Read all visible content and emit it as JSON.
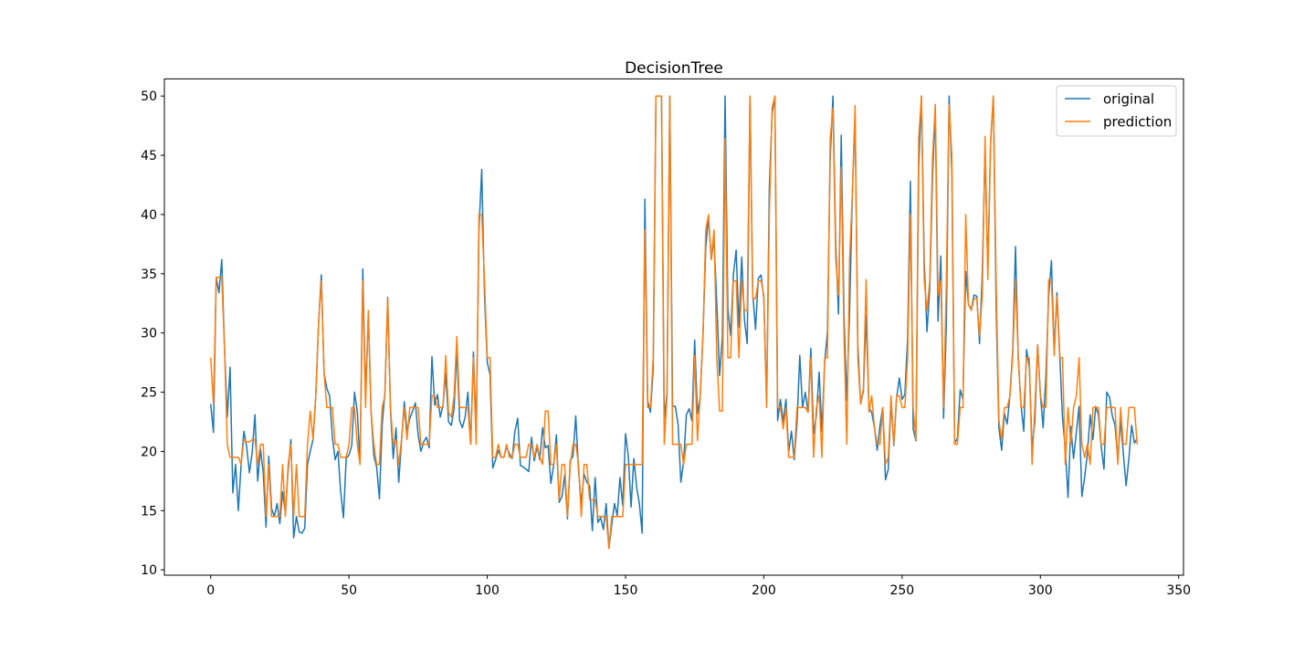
{
  "chart_data": {
    "type": "line",
    "title": "DecisionTree",
    "xlabel": "",
    "ylabel": "",
    "xlim": [
      -16.75,
      351.75
    ],
    "ylim": [
      9.55,
      51.45
    ],
    "xticks": [
      0,
      50,
      100,
      150,
      200,
      250,
      300,
      350
    ],
    "yticks": [
      10,
      15,
      20,
      25,
      30,
      35,
      40,
      45,
      50
    ],
    "grid": false,
    "legend_position": "upper-right",
    "series": [
      {
        "name": "original",
        "color": "#1f77b4",
        "values": [
          24.0,
          21.6,
          34.7,
          33.4,
          36.2,
          28.7,
          22.9,
          27.1,
          16.5,
          18.9,
          15.0,
          18.9,
          21.7,
          20.4,
          18.2,
          19.9,
          23.1,
          17.5,
          20.2,
          18.2,
          13.6,
          19.6,
          15.2,
          14.5,
          15.6,
          13.9,
          16.6,
          14.8,
          18.4,
          21.0,
          12.7,
          14.5,
          13.2,
          13.1,
          13.5,
          18.9,
          20.0,
          21.0,
          24.7,
          30.8,
          34.9,
          26.6,
          25.3,
          24.7,
          21.2,
          19.3,
          20.0,
          16.6,
          14.4,
          19.4,
          19.7,
          20.5,
          25.0,
          23.4,
          18.9,
          35.4,
          24.7,
          31.6,
          23.3,
          19.6,
          18.7,
          16.0,
          22.2,
          25.0,
          33.0,
          23.5,
          19.4,
          22.0,
          17.4,
          20.9,
          24.2,
          21.7,
          22.8,
          23.4,
          24.1,
          21.4,
          20.0,
          20.8,
          21.2,
          20.3,
          28.0,
          23.9,
          24.8,
          22.9,
          23.9,
          26.6,
          22.5,
          22.2,
          23.6,
          28.7,
          22.6,
          22.0,
          22.9,
          25.0,
          20.6,
          28.4,
          21.4,
          38.7,
          43.8,
          33.2,
          27.5,
          26.5,
          18.6,
          19.3,
          20.1,
          19.5,
          19.5,
          20.4,
          19.8,
          19.4,
          21.7,
          22.8,
          18.8,
          18.7,
          18.5,
          18.3,
          21.2,
          19.2,
          20.4,
          19.3,
          22.0,
          20.3,
          20.5,
          17.3,
          18.8,
          21.4,
          15.7,
          16.2,
          18.0,
          14.3,
          19.2,
          19.6,
          23.0,
          18.4,
          15.6,
          18.1,
          17.4,
          17.1,
          13.3,
          17.8,
          14.0,
          14.4,
          13.4,
          15.6,
          11.8,
          13.8,
          15.6,
          14.6,
          17.8,
          15.4,
          21.5,
          19.6,
          15.3,
          19.4,
          17.0,
          15.6,
          13.1,
          41.3,
          24.3,
          23.3,
          27.0,
          50.0,
          50.0,
          50.0,
          22.7,
          25.0,
          50.0,
          23.8,
          23.8,
          22.3,
          17.4,
          19.1,
          23.1,
          23.6,
          22.6,
          29.4,
          23.2,
          24.6,
          29.9,
          37.2,
          39.8,
          36.2,
          37.9,
          32.5,
          26.4,
          29.6,
          50.0,
          32.0,
          29.8,
          34.9,
          37.0,
          30.5,
          36.4,
          31.1,
          29.1,
          50.0,
          33.3,
          30.3,
          34.6,
          34.9,
          32.9,
          24.1,
          42.3,
          48.5,
          50.0,
          22.6,
          24.4,
          22.5,
          24.4,
          20.0,
          21.7,
          19.3,
          22.4,
          28.1,
          23.7,
          25.0,
          23.3,
          28.7,
          21.5,
          23.0,
          26.7,
          21.7,
          27.5,
          30.1,
          44.8,
          50.0,
          37.6,
          31.6,
          46.7,
          31.5,
          24.3,
          31.7,
          41.7,
          48.3,
          29.0,
          24.0,
          25.1,
          31.5,
          23.7,
          23.3,
          22.0,
          20.1,
          22.2,
          23.7,
          17.6,
          18.5,
          24.3,
          20.5,
          24.5,
          26.2,
          24.4,
          24.8,
          29.6,
          42.8,
          21.9,
          20.9,
          44.0,
          50.0,
          36.0,
          30.1,
          33.8,
          43.1,
          48.8,
          31.0,
          36.5,
          22.8,
          30.7,
          50.0,
          43.5,
          20.7,
          21.1,
          25.2,
          24.4,
          35.2,
          32.4,
          32.0,
          33.2,
          33.1,
          29.1,
          35.1,
          45.4,
          35.4,
          46.0,
          50.0,
          32.2,
          22.0,
          20.1,
          23.2,
          22.3,
          24.8,
          28.5,
          37.3,
          27.9,
          23.9,
          21.7,
          28.6,
          27.1,
          20.3,
          22.5,
          29.0,
          24.8,
          22.0,
          26.4,
          33.1,
          36.1,
          28.4,
          33.4,
          28.2,
          22.8,
          20.3,
          16.1,
          22.1,
          19.4,
          21.6,
          23.8,
          16.2,
          17.8,
          19.8,
          23.1,
          21.0,
          23.8,
          23.1,
          20.4,
          18.5,
          25.0,
          24.6,
          23.0,
          22.2,
          19.3,
          22.6,
          19.8,
          17.1,
          19.4,
          22.2,
          20.7,
          21.1
        ]
      },
      {
        "name": "prediction",
        "color": "#ff7f0e",
        "values": [
          27.9,
          24.0,
          34.7,
          34.7,
          34.7,
          28.7,
          20.6,
          19.5,
          19.5,
          19.5,
          19.5,
          18.9,
          21.0,
          20.8,
          20.8,
          21.0,
          21.0,
          18.9,
          20.6,
          20.6,
          14.5,
          18.9,
          14.5,
          14.5,
          14.5,
          14.5,
          18.9,
          14.5,
          18.9,
          20.6,
          14.5,
          18.9,
          14.5,
          14.5,
          14.5,
          20.6,
          23.4,
          21.0,
          24.7,
          30.8,
          34.4,
          26.6,
          23.7,
          23.7,
          23.7,
          20.6,
          20.6,
          19.5,
          19.5,
          19.5,
          20.6,
          23.7,
          23.7,
          20.6,
          18.9,
          34.4,
          23.7,
          31.9,
          23.3,
          20.6,
          18.9,
          18.9,
          23.7,
          24.7,
          32.9,
          23.7,
          20.6,
          21.0,
          18.9,
          21.0,
          23.7,
          21.0,
          23.7,
          23.7,
          23.7,
          23.7,
          20.6,
          20.6,
          20.6,
          20.6,
          24.7,
          24.7,
          23.7,
          23.7,
          23.7,
          28.1,
          23.3,
          22.9,
          24.7,
          29.7,
          23.7,
          23.7,
          23.7,
          23.7,
          20.6,
          27.9,
          20.6,
          40.0,
          40.0,
          34.4,
          27.9,
          27.9,
          19.5,
          19.5,
          20.6,
          19.5,
          19.5,
          20.6,
          19.5,
          19.5,
          20.6,
          20.6,
          19.5,
          19.5,
          19.5,
          20.6,
          20.6,
          19.5,
          20.6,
          19.5,
          18.9,
          23.4,
          23.4,
          18.9,
          18.9,
          20.6,
          15.9,
          18.9,
          18.9,
          14.5,
          18.9,
          20.6,
          20.6,
          18.9,
          14.5,
          18.9,
          18.9,
          15.9,
          15.9,
          15.9,
          14.5,
          14.5,
          14.5,
          14.5,
          11.8,
          14.5,
          14.5,
          14.5,
          14.5,
          14.5,
          18.9,
          18.9,
          18.9,
          18.9,
          18.9,
          18.9,
          18.9,
          38.7,
          23.7,
          23.7,
          27.9,
          50.0,
          50.0,
          50.0,
          20.6,
          24.7,
          50.0,
          20.6,
          20.6,
          20.6,
          20.6,
          18.9,
          20.6,
          20.6,
          20.6,
          28.1,
          20.9,
          24.7,
          29.7,
          38.7,
          40.0,
          36.2,
          38.7,
          27.9,
          23.4,
          23.4,
          46.4,
          27.9,
          27.9,
          34.4,
          34.4,
          27.9,
          34.4,
          31.9,
          31.9,
          50.0,
          32.9,
          32.9,
          34.4,
          34.4,
          33.2,
          23.7,
          40.0,
          49.0,
          50.0,
          23.7,
          23.7,
          21.9,
          23.7,
          19.5,
          19.5,
          19.5,
          23.7,
          23.7,
          23.7,
          23.7,
          23.3,
          27.9,
          19.5,
          23.7,
          24.7,
          19.5,
          27.9,
          27.9,
          46.4,
          49.0,
          36.2,
          33.2,
          44.0,
          29.7,
          20.6,
          36.2,
          41.7,
          49.2,
          27.9,
          24.0,
          25.3,
          34.5,
          23.3,
          24.7,
          22.0,
          20.6,
          20.6,
          23.7,
          18.9,
          19.5,
          24.7,
          20.6,
          24.7,
          24.7,
          23.7,
          23.7,
          27.9,
          40.0,
          23.7,
          21.0,
          46.4,
          50.0,
          34.4,
          31.9,
          34.4,
          44.8,
          49.3,
          33.2,
          34.4,
          23.7,
          34.4,
          49.3,
          45.0,
          20.6,
          20.6,
          23.7,
          23.7,
          40.0,
          32.4,
          31.9,
          32.9,
          32.9,
          29.7,
          33.2,
          46.6,
          34.5,
          46.2,
          50.0,
          34.4,
          22.6,
          21.0,
          23.7,
          23.7,
          24.7,
          28.1,
          34.5,
          27.9,
          23.7,
          23.7,
          27.9,
          27.9,
          18.9,
          23.7,
          29.0,
          24.7,
          23.7,
          23.7,
          34.5,
          34.4,
          28.1,
          33.1,
          27.9,
          27.9,
          18.9,
          23.7,
          20.6,
          23.7,
          24.7,
          27.9,
          20.6,
          19.5,
          20.6,
          18.9,
          23.7,
          23.7,
          23.7,
          20.6,
          20.6,
          23.7,
          23.7,
          23.7,
          23.7,
          18.9,
          23.7,
          20.6,
          20.6,
          23.7,
          23.7,
          23.7,
          20.6
        ]
      }
    ]
  }
}
